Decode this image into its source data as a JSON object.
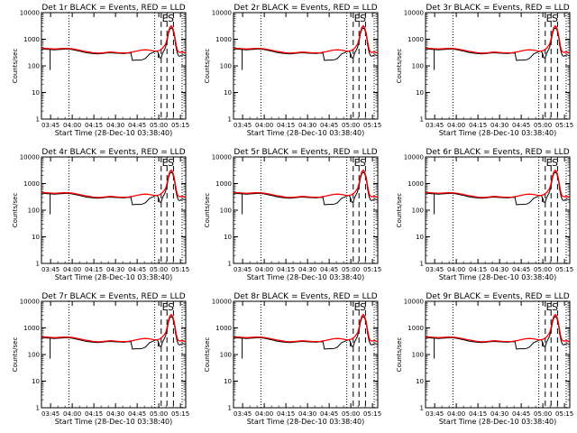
{
  "chart_data": [
    {
      "type": "line",
      "title": "Det 1r BLACK = Events, RED = LLD"
    },
    {
      "type": "line",
      "title": "Det 2r BLACK = Events, RED = LLD"
    },
    {
      "type": "line",
      "title": "Det 3r BLACK = Events, RED = LLD"
    },
    {
      "type": "line",
      "title": "Det 4r BLACK = Events, RED = LLD"
    },
    {
      "type": "line",
      "title": "Det 5r BLACK = Events, RED = LLD"
    },
    {
      "type": "line",
      "title": "Det 6r BLACK = Events, RED = LLD"
    },
    {
      "type": "line",
      "title": "Det 7r BLACK = Events, RED = LLD"
    },
    {
      "type": "line",
      "title": "Det 8r BLACK = Events, RED = LLD"
    },
    {
      "type": "line",
      "title": "Det 9r BLACK = Events, RED = LLD"
    }
  ],
  "shared": {
    "xlabel": "Start Time (28-Dec-10 03:38:40)",
    "ylabel": "Counts/sec",
    "xlim_minutes": [
      0,
      100
    ],
    "x_tick_minutes": [
      6.33,
      21.33,
      36.33,
      51.33,
      66.33,
      81.33,
      96.33
    ],
    "x_tick_labels": [
      "03:45",
      "04:00",
      "04:15",
      "04:30",
      "04:45",
      "05:00",
      "05:15"
    ],
    "ylim": [
      1,
      10000
    ],
    "y_scale": "log",
    "y_ticks": [
      1,
      10,
      100,
      1000,
      10000
    ],
    "y_tick_labels": [
      "1",
      "10",
      "100",
      "1000",
      "10000"
    ],
    "dotted_lines_minutes": [
      19,
      78.5,
      97.5
    ],
    "dashed_lines_minutes": [
      83,
      87,
      91.5
    ],
    "markers": [
      {
        "text": "E",
        "x_minutes": 83.5
      },
      {
        "text": "S",
        "x_minutes": 87.5
      }
    ],
    "series": [
      {
        "name": "Events",
        "color": "#000000",
        "x": [
          0,
          3,
          6,
          9,
          12,
          15,
          18,
          21,
          24,
          27,
          30,
          33,
          36,
          39,
          42,
          45,
          48,
          51,
          54,
          57,
          60,
          62,
          63,
          65,
          68,
          70,
          72,
          75,
          78,
          79,
          80,
          81,
          82,
          83,
          84,
          85,
          86,
          87,
          88,
          89,
          90,
          91,
          92,
          93,
          94,
          95,
          96,
          97,
          98,
          99,
          100
        ],
        "y": [
          440,
          420,
          410,
          400,
          410,
          420,
          430,
          410,
          380,
          350,
          320,
          300,
          290,
          280,
          290,
          305,
          310,
          300,
          295,
          290,
          300,
          305,
          160,
          165,
          165,
          170,
          190,
          280,
          330,
          350,
          360,
          300,
          200,
          200,
          300,
          380,
          500,
          800,
          1600,
          2400,
          2700,
          2300,
          1500,
          600,
          320,
          240,
          230,
          250,
          260,
          250,
          240
        ],
        "dips": [
          {
            "x_minutes": 6,
            "y": 70
          },
          {
            "x_minutes": 81,
            "y": 200
          }
        ]
      },
      {
        "name": "LLD",
        "color": "#ff0000",
        "x": [
          0,
          3,
          6,
          9,
          12,
          15,
          18,
          21,
          24,
          27,
          30,
          33,
          36,
          39,
          42,
          45,
          48,
          51,
          54,
          57,
          60,
          63,
          66,
          69,
          72,
          75,
          78,
          80,
          82,
          84,
          86,
          87,
          88,
          89,
          90,
          91,
          92,
          93,
          94,
          95,
          96,
          97,
          98,
          99,
          100
        ],
        "y": [
          460,
          450,
          440,
          430,
          440,
          450,
          455,
          440,
          410,
          380,
          350,
          330,
          310,
          300,
          305,
          320,
          330,
          320,
          310,
          305,
          310,
          330,
          360,
          390,
          400,
          390,
          360,
          360,
          380,
          460,
          650,
          1000,
          1900,
          2800,
          3200,
          2700,
          1700,
          800,
          420,
          330,
          320,
          330,
          330,
          320,
          300
        ]
      }
    ]
  }
}
